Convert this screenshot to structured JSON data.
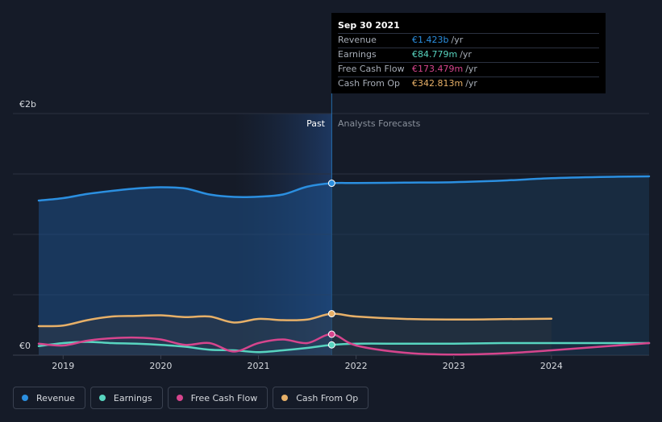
{
  "chart_data": {
    "type": "line",
    "title": "",
    "y_unit_labels": [
      "€2b",
      "€0"
    ],
    "ylim": [
      0,
      2000
    ],
    "xlim": [
      2018.75,
      2025.0
    ],
    "x_ticks": [
      "2019",
      "2020",
      "2021",
      "2022",
      "2023",
      "2024"
    ],
    "past_label": "Past",
    "forecast_label": "Analysts Forecasts",
    "divider_x": 2021.75,
    "series": [
      {
        "name": "Revenue",
        "color": "#2b8fe0",
        "points": [
          [
            2018.75,
            1280
          ],
          [
            2019.0,
            1300
          ],
          [
            2019.25,
            1335
          ],
          [
            2019.5,
            1360
          ],
          [
            2019.75,
            1380
          ],
          [
            2020.0,
            1390
          ],
          [
            2020.25,
            1380
          ],
          [
            2020.5,
            1330
          ],
          [
            2020.75,
            1310
          ],
          [
            2021.0,
            1312
          ],
          [
            2021.25,
            1330
          ],
          [
            2021.5,
            1395
          ],
          [
            2021.75,
            1423
          ],
          [
            2022.0,
            1425
          ],
          [
            2022.5,
            1428
          ],
          [
            2023.0,
            1432
          ],
          [
            2023.5,
            1445
          ],
          [
            2024.0,
            1465
          ],
          [
            2024.5,
            1475
          ],
          [
            2025.0,
            1480
          ]
        ]
      },
      {
        "name": "Earnings",
        "color": "#58d5c0",
        "points": [
          [
            2018.75,
            75
          ],
          [
            2019.0,
            100
          ],
          [
            2019.25,
            110
          ],
          [
            2019.5,
            100
          ],
          [
            2019.75,
            95
          ],
          [
            2020.0,
            85
          ],
          [
            2020.25,
            70
          ],
          [
            2020.5,
            45
          ],
          [
            2020.75,
            40
          ],
          [
            2021.0,
            25
          ],
          [
            2021.25,
            40
          ],
          [
            2021.5,
            60
          ],
          [
            2021.75,
            85
          ],
          [
            2022.0,
            95
          ],
          [
            2022.5,
            95
          ],
          [
            2023.0,
            95
          ],
          [
            2023.5,
            100
          ],
          [
            2024.0,
            100
          ],
          [
            2024.5,
            100
          ],
          [
            2025.0,
            100
          ]
        ]
      },
      {
        "name": "Free Cash Flow",
        "color": "#d6458d",
        "points": [
          [
            2018.75,
            95
          ],
          [
            2019.0,
            80
          ],
          [
            2019.25,
            120
          ],
          [
            2019.5,
            140
          ],
          [
            2019.75,
            145
          ],
          [
            2020.0,
            130
          ],
          [
            2020.25,
            85
          ],
          [
            2020.5,
            100
          ],
          [
            2020.75,
            30
          ],
          [
            2021.0,
            100
          ],
          [
            2021.25,
            130
          ],
          [
            2021.5,
            100
          ],
          [
            2021.75,
            173
          ],
          [
            2022.0,
            80
          ],
          [
            2022.5,
            20
          ],
          [
            2023.0,
            5
          ],
          [
            2023.5,
            15
          ],
          [
            2024.0,
            40
          ],
          [
            2024.5,
            70
          ],
          [
            2025.0,
            100
          ]
        ]
      },
      {
        "name": "Cash From Op",
        "color": "#e7b068",
        "points": [
          [
            2018.75,
            240
          ],
          [
            2019.0,
            245
          ],
          [
            2019.25,
            290
          ],
          [
            2019.5,
            320
          ],
          [
            2019.75,
            325
          ],
          [
            2020.0,
            330
          ],
          [
            2020.25,
            315
          ],
          [
            2020.5,
            320
          ],
          [
            2020.75,
            270
          ],
          [
            2021.0,
            300
          ],
          [
            2021.25,
            290
          ],
          [
            2021.5,
            295
          ],
          [
            2021.75,
            343
          ],
          [
            2022.0,
            320
          ],
          [
            2022.5,
            300
          ],
          [
            2023.0,
            295
          ],
          [
            2023.5,
            298
          ],
          [
            2024.0,
            302
          ]
        ]
      }
    ],
    "tooltip": {
      "date": "Sep 30 2021",
      "rows": [
        {
          "label": "Revenue",
          "value": "€1.423b",
          "unit": "/yr",
          "color": "#2b8fe0"
        },
        {
          "label": "Earnings",
          "value": "€84.779m",
          "unit": "/yr",
          "color": "#58d5c0"
        },
        {
          "label": "Free Cash Flow",
          "value": "€173.479m",
          "unit": "/yr",
          "color": "#d6458d"
        },
        {
          "label": "Cash From Op",
          "value": "€342.813m",
          "unit": "/yr",
          "color": "#e7b068"
        }
      ]
    },
    "legend": [
      {
        "label": "Revenue",
        "color": "#2b8fe0"
      },
      {
        "label": "Earnings",
        "color": "#58d5c0"
      },
      {
        "label": "Free Cash Flow",
        "color": "#d6458d"
      },
      {
        "label": "Cash From Op",
        "color": "#e7b068"
      }
    ]
  }
}
